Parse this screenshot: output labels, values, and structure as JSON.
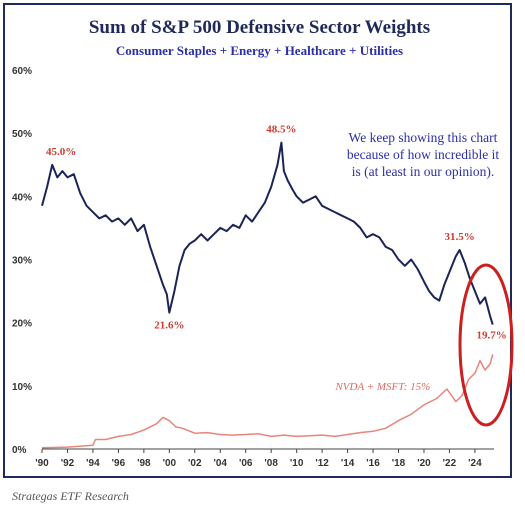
{
  "chart_data": {
    "type": "line",
    "title": "Sum of S&P 500 Defensive Sector Weights",
    "subtitle": "Consumer Staples + Energy + Healthcare + Utilities",
    "xlabel": "",
    "ylabel": "",
    "ylim": [
      0,
      60
    ],
    "xlim": [
      1990,
      2025.5
    ],
    "y_ticks": [
      "0%",
      "10%",
      "20%",
      "30%",
      "40%",
      "50%",
      "60%"
    ],
    "x_ticks": [
      "'90",
      "'92",
      "'94",
      "'96",
      "'98",
      "'00",
      "'02",
      "'04",
      "'06",
      "'08",
      "'10",
      "'12",
      "'14",
      "'16",
      "'18",
      "'20",
      "'22",
      "'24"
    ],
    "grid": false,
    "series": [
      {
        "name": "",
        "color": "#1a2456",
        "points": [
          [
            1990.0,
            38.5
          ],
          [
            1990.4,
            41.5
          ],
          [
            1990.8,
            45.0
          ],
          [
            1991.2,
            43.0
          ],
          [
            1991.6,
            44.0
          ],
          [
            1992.0,
            43.0
          ],
          [
            1992.5,
            43.5
          ],
          [
            1993.0,
            40.5
          ],
          [
            1993.5,
            38.5
          ],
          [
            1994.0,
            37.5
          ],
          [
            1994.5,
            36.5
          ],
          [
            1995.0,
            37.0
          ],
          [
            1995.5,
            36.0
          ],
          [
            1996.0,
            36.5
          ],
          [
            1996.5,
            35.5
          ],
          [
            1997.0,
            36.5
          ],
          [
            1997.5,
            34.5
          ],
          [
            1998.0,
            35.5
          ],
          [
            1998.5,
            32.0
          ],
          [
            1999.0,
            29.0
          ],
          [
            1999.5,
            26.0
          ],
          [
            1999.8,
            24.5
          ],
          [
            2000.0,
            21.6
          ],
          [
            2000.4,
            25.0
          ],
          [
            2000.8,
            29.0
          ],
          [
            2001.2,
            31.5
          ],
          [
            2001.6,
            32.5
          ],
          [
            2002.0,
            33.0
          ],
          [
            2002.5,
            34.0
          ],
          [
            2003.0,
            33.0
          ],
          [
            2003.5,
            34.0
          ],
          [
            2004.0,
            35.0
          ],
          [
            2004.5,
            34.5
          ],
          [
            2005.0,
            35.5
          ],
          [
            2005.5,
            35.0
          ],
          [
            2006.0,
            37.0
          ],
          [
            2006.5,
            36.0
          ],
          [
            2007.0,
            37.5
          ],
          [
            2007.5,
            39.0
          ],
          [
            2008.0,
            41.5
          ],
          [
            2008.5,
            45.0
          ],
          [
            2008.8,
            48.5
          ],
          [
            2009.0,
            44.0
          ],
          [
            2009.3,
            42.5
          ],
          [
            2009.7,
            41.0
          ],
          [
            2010.0,
            40.0
          ],
          [
            2010.5,
            39.0
          ],
          [
            2011.0,
            39.5
          ],
          [
            2011.5,
            40.0
          ],
          [
            2012.0,
            38.5
          ],
          [
            2012.5,
            38.0
          ],
          [
            2013.0,
            37.5
          ],
          [
            2013.5,
            37.0
          ],
          [
            2014.0,
            36.5
          ],
          [
            2014.5,
            36.0
          ],
          [
            2015.0,
            35.0
          ],
          [
            2015.5,
            33.5
          ],
          [
            2016.0,
            34.0
          ],
          [
            2016.5,
            33.5
          ],
          [
            2017.0,
            32.0
          ],
          [
            2017.5,
            31.5
          ],
          [
            2018.0,
            30.0
          ],
          [
            2018.5,
            29.0
          ],
          [
            2019.0,
            30.0
          ],
          [
            2019.5,
            28.5
          ],
          [
            2020.0,
            26.5
          ],
          [
            2020.4,
            25.0
          ],
          [
            2020.8,
            24.0
          ],
          [
            2021.2,
            23.5
          ],
          [
            2021.6,
            26.0
          ],
          [
            2022.0,
            28.0
          ],
          [
            2022.5,
            30.5
          ],
          [
            2022.8,
            31.5
          ],
          [
            2023.2,
            29.5
          ],
          [
            2023.6,
            27.0
          ],
          [
            2024.0,
            25.0
          ],
          [
            2024.4,
            23.0
          ],
          [
            2024.8,
            24.0
          ],
          [
            2025.2,
            21.0
          ],
          [
            2025.4,
            19.7
          ]
        ]
      },
      {
        "name": "NVDA + MSFT: 15%",
        "color": "#e8857a",
        "points": [
          [
            1990.0,
            0.2
          ],
          [
            1992.0,
            0.3
          ],
          [
            1994.0,
            0.6
          ],
          [
            1994.2,
            1.5
          ],
          [
            1995.0,
            1.5
          ],
          [
            1996.0,
            2.0
          ],
          [
            1997.0,
            2.3
          ],
          [
            1998.0,
            3.0
          ],
          [
            1999.0,
            4.0
          ],
          [
            1999.5,
            5.0
          ],
          [
            2000.0,
            4.5
          ],
          [
            2000.5,
            3.5
          ],
          [
            2001.0,
            3.3
          ],
          [
            2002.0,
            2.5
          ],
          [
            2003.0,
            2.6
          ],
          [
            2004.0,
            2.3
          ],
          [
            2005.0,
            2.2
          ],
          [
            2006.0,
            2.3
          ],
          [
            2007.0,
            2.4
          ],
          [
            2008.0,
            2.0
          ],
          [
            2009.0,
            2.2
          ],
          [
            2010.0,
            2.0
          ],
          [
            2011.0,
            2.1
          ],
          [
            2012.0,
            2.2
          ],
          [
            2013.0,
            2.0
          ],
          [
            2014.0,
            2.3
          ],
          [
            2015.0,
            2.6
          ],
          [
            2016.0,
            2.8
          ],
          [
            2017.0,
            3.3
          ],
          [
            2018.0,
            4.5
          ],
          [
            2019.0,
            5.5
          ],
          [
            2020.0,
            7.0
          ],
          [
            2021.0,
            8.0
          ],
          [
            2021.8,
            9.5
          ],
          [
            2022.5,
            7.5
          ],
          [
            2023.0,
            8.5
          ],
          [
            2023.5,
            11.0
          ],
          [
            2024.0,
            12.0
          ],
          [
            2024.4,
            14.0
          ],
          [
            2024.8,
            12.5
          ],
          [
            2025.2,
            13.5
          ],
          [
            2025.4,
            15.0
          ]
        ]
      }
    ],
    "annotations": [
      {
        "text": "45.0%",
        "x": 1991.5,
        "y": 45.0
      },
      {
        "text": "21.6%",
        "x": 2000.0,
        "y": 21.6
      },
      {
        "text": "48.5%",
        "x": 2008.8,
        "y": 48.5
      },
      {
        "text": "31.5%",
        "x": 2022.8,
        "y": 31.5
      },
      {
        "text": "19.7%",
        "x": 2025.4,
        "y": 19.7
      },
      {
        "text": "NVDA + MSFT: 15%",
        "x": 2020.5,
        "y": 10.0
      }
    ],
    "note": "We keep showing this chart because of how incredible it is (at least in our opinion).",
    "highlight_color": "#cc1f1f"
  },
  "footer": "Strategas ETF Research",
  "colors": {
    "frame": "#1f2a5a",
    "axis": "#444444",
    "label": "#d03a2e"
  }
}
